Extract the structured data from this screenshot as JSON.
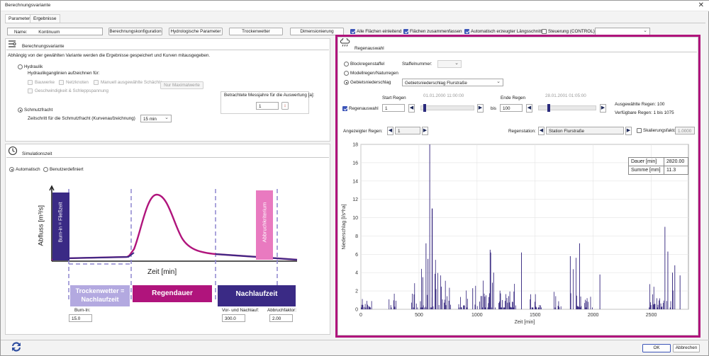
{
  "window": {
    "title": "Berechnungsvariante",
    "close_icon": "close-icon"
  },
  "tabs": [
    "Parameter",
    "Ergebnisse"
  ],
  "toolbar": {
    "name_label": "Name:",
    "name_value": "Kontinuum",
    "buttons": [
      "Berechnungskonfiguration",
      "Hydrologische Parameter",
      "Trockenwetter",
      "Dimensionierung"
    ],
    "checks": [
      "Alle Flächen einleitend",
      "Flächen zusammenfassen",
      "Automatisch erzeugter Längsschnitt",
      "Steuerung (CONTROL)"
    ]
  },
  "variant": {
    "title": "Berechnungsvariante",
    "desc": "Abhängig von der gewählten Variante werden die Ergebnisse gespeichert und Kurven mitausgegeben.",
    "hydraulik": "Hydraulik",
    "ganglinien": "Hydraulikganglinien aufzeichnen für:",
    "opt1": "Bauwerke",
    "opt2": "Netzknoten",
    "opt3": "Manuell ausgewählte Schächte",
    "opt4": "Geschwindigkeit & Schleppspannung",
    "maxbtn": "Nur Maximalwerte",
    "schmutz": "Schmutzfracht",
    "zeitschritt": "Zeitschritt für die Schmutzfracht (Kurvenaufzeichnung)",
    "zeitschritt_val": "15 min",
    "messjahre": "Betrachtete Messjahre für die Auswertung [a]:",
    "messjahre_val": "1"
  },
  "sim": {
    "title": "Simulationszeit",
    "auto": "Automatisch",
    "user": "Benutzerdefiniert",
    "burnin_label": "Burn-In:",
    "burnin_val": "15.0",
    "vor_label": "Vor- und Nachlauf:",
    "vor_val": "300.0",
    "abbruch_label": "Abbruchfaktor:",
    "abbruch_val": "2.00"
  },
  "diagram": {
    "ylabel": "Abfluss [m³/s]",
    "xlabel": "Zeit [min]",
    "burnin": "Burn-in = Fließzeit",
    "abbruch": "Abbruchkriterium",
    "trocken": "Trockenwetter = Nachlaufzeit",
    "regendauer": "Regendauer",
    "nachlauf": "Nachlaufzeit",
    "colors": {
      "light": "#b3a9e0",
      "dark": "#3a2a85",
      "magenta": "#b0147c",
      "pink": "#e97ac0"
    }
  },
  "rain": {
    "title": "Regenauswahl",
    "block": "Blockregenstaffel",
    "staffel": "Staffelnummer:",
    "modell": "Modellregen/Naturregen",
    "gebiet": "Gebietsniederschlag",
    "gebiet_val": "Gebietsniederschlag Flurstraße",
    "start_label": "Start Regen",
    "start_date": "01.01.2000 11:00:00",
    "ende_label": "Ende Regen",
    "ende_date": "28.01.2001 01:05:00",
    "regenauswahl": "Regenauswahl",
    "from": "1",
    "bis": "bis",
    "to": "100",
    "ausgew": "Ausgewählte Regen: 100",
    "verf": "Verfügbare Regen: 1 bis 1075",
    "angezeigt": "Angezeigter Regen:",
    "angezeigt_val": "1",
    "station_label": "Regenstation:",
    "station_val": "Station Flurstraße",
    "skal": "Skalierungsfaktor",
    "skal_val": "1.0000",
    "stats": [
      {
        "k": "Dauer [min]",
        "v": "2820.00"
      },
      {
        "k": "Summe [mm]",
        "v": "11.3"
      }
    ]
  },
  "chart_data": {
    "type": "bar",
    "title": "",
    "xlabel": "Zeit [min]",
    "ylabel": "Niederschlag [l/s*ha]",
    "xlim": [
      0,
      2820
    ],
    "ylim": [
      0,
      18
    ],
    "xticks": [
      0,
      500,
      1000,
      1500,
      2000,
      2500
    ],
    "yticks": [
      0,
      2,
      4,
      6,
      8,
      10,
      12,
      14,
      16,
      18
    ],
    "color": "#2e1f7a"
  },
  "footer": {
    "ok": "OK",
    "cancel": "Abbrechen"
  }
}
